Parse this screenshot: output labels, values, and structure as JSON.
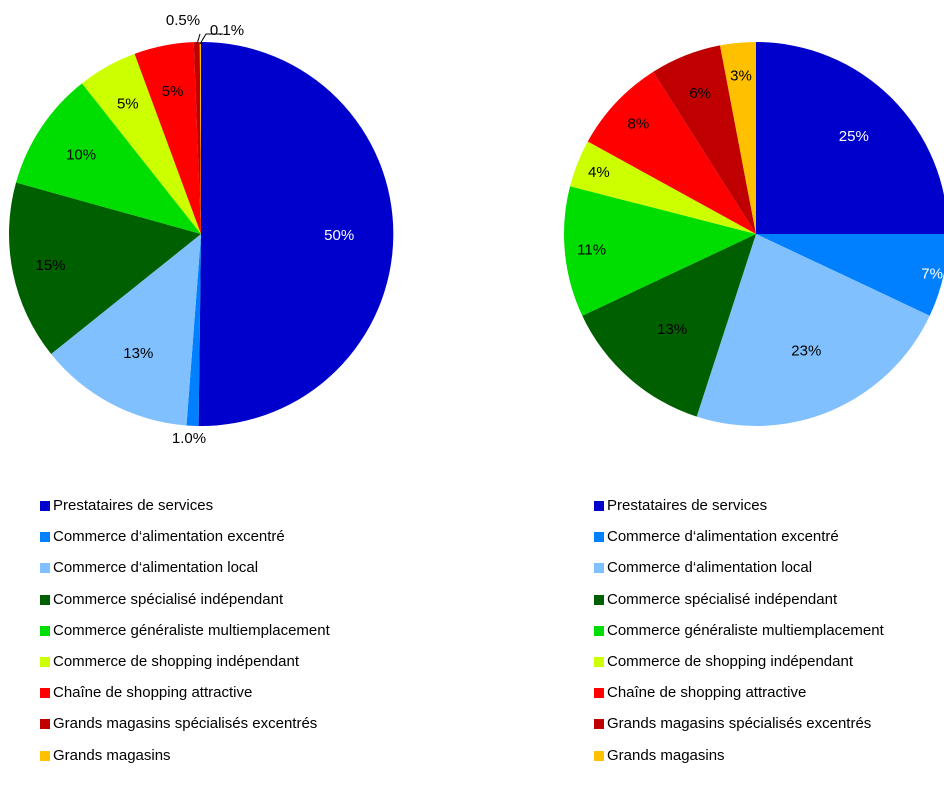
{
  "chart_data": [
    {
      "type": "pie",
      "categories": [
        "Prestataires de services",
        "Commerce d‘alimentation excentré",
        "Commerce d‘alimentation local",
        "Commerce spécialisé indépendant",
        "Commerce généraliste multiemplacement",
        "Commerce de shopping indépendant",
        "Chaîne de shopping attractive",
        "Grands magasins spécialisés excentrés",
        "Grands magasins"
      ],
      "values": [
        50,
        1.0,
        13,
        15,
        10,
        5,
        5,
        0.5,
        0.1
      ],
      "labels": [
        "50%",
        "1.0%",
        "13%",
        "15%",
        "10%",
        "5%",
        "5%",
        "0.5%",
        "0.1%"
      ],
      "colors": [
        "#0000CC",
        "#0080FF",
        "#80C0FF",
        "#006000",
        "#00DD00",
        "#CCFF00",
        "#FF0000",
        "#C00000",
        "#FFC000"
      ],
      "legend_position": "bottom"
    },
    {
      "type": "pie",
      "categories": [
        "Prestataires de services",
        "Commerce d‘alimentation excentré",
        "Commerce d‘alimentation local",
        "Commerce spécialisé indépendant",
        "Commerce généraliste multiemplacement",
        "Commerce de shopping indépendant",
        "Chaîne de shopping attractive",
        "Grands magasins spécialisés excentrés",
        "Grands magasins"
      ],
      "values": [
        25,
        7,
        23,
        13,
        11,
        4,
        8,
        6,
        3
      ],
      "labels": [
        "25%",
        "7%",
        "23%",
        "13%",
        "11%",
        "4%",
        "8%",
        "6%",
        "3%"
      ],
      "colors": [
        "#0000CC",
        "#0080FF",
        "#80C0FF",
        "#006000",
        "#00DD00",
        "#CCFF00",
        "#FF0000",
        "#C00000",
        "#FFC000"
      ],
      "legend_position": "bottom"
    }
  ]
}
